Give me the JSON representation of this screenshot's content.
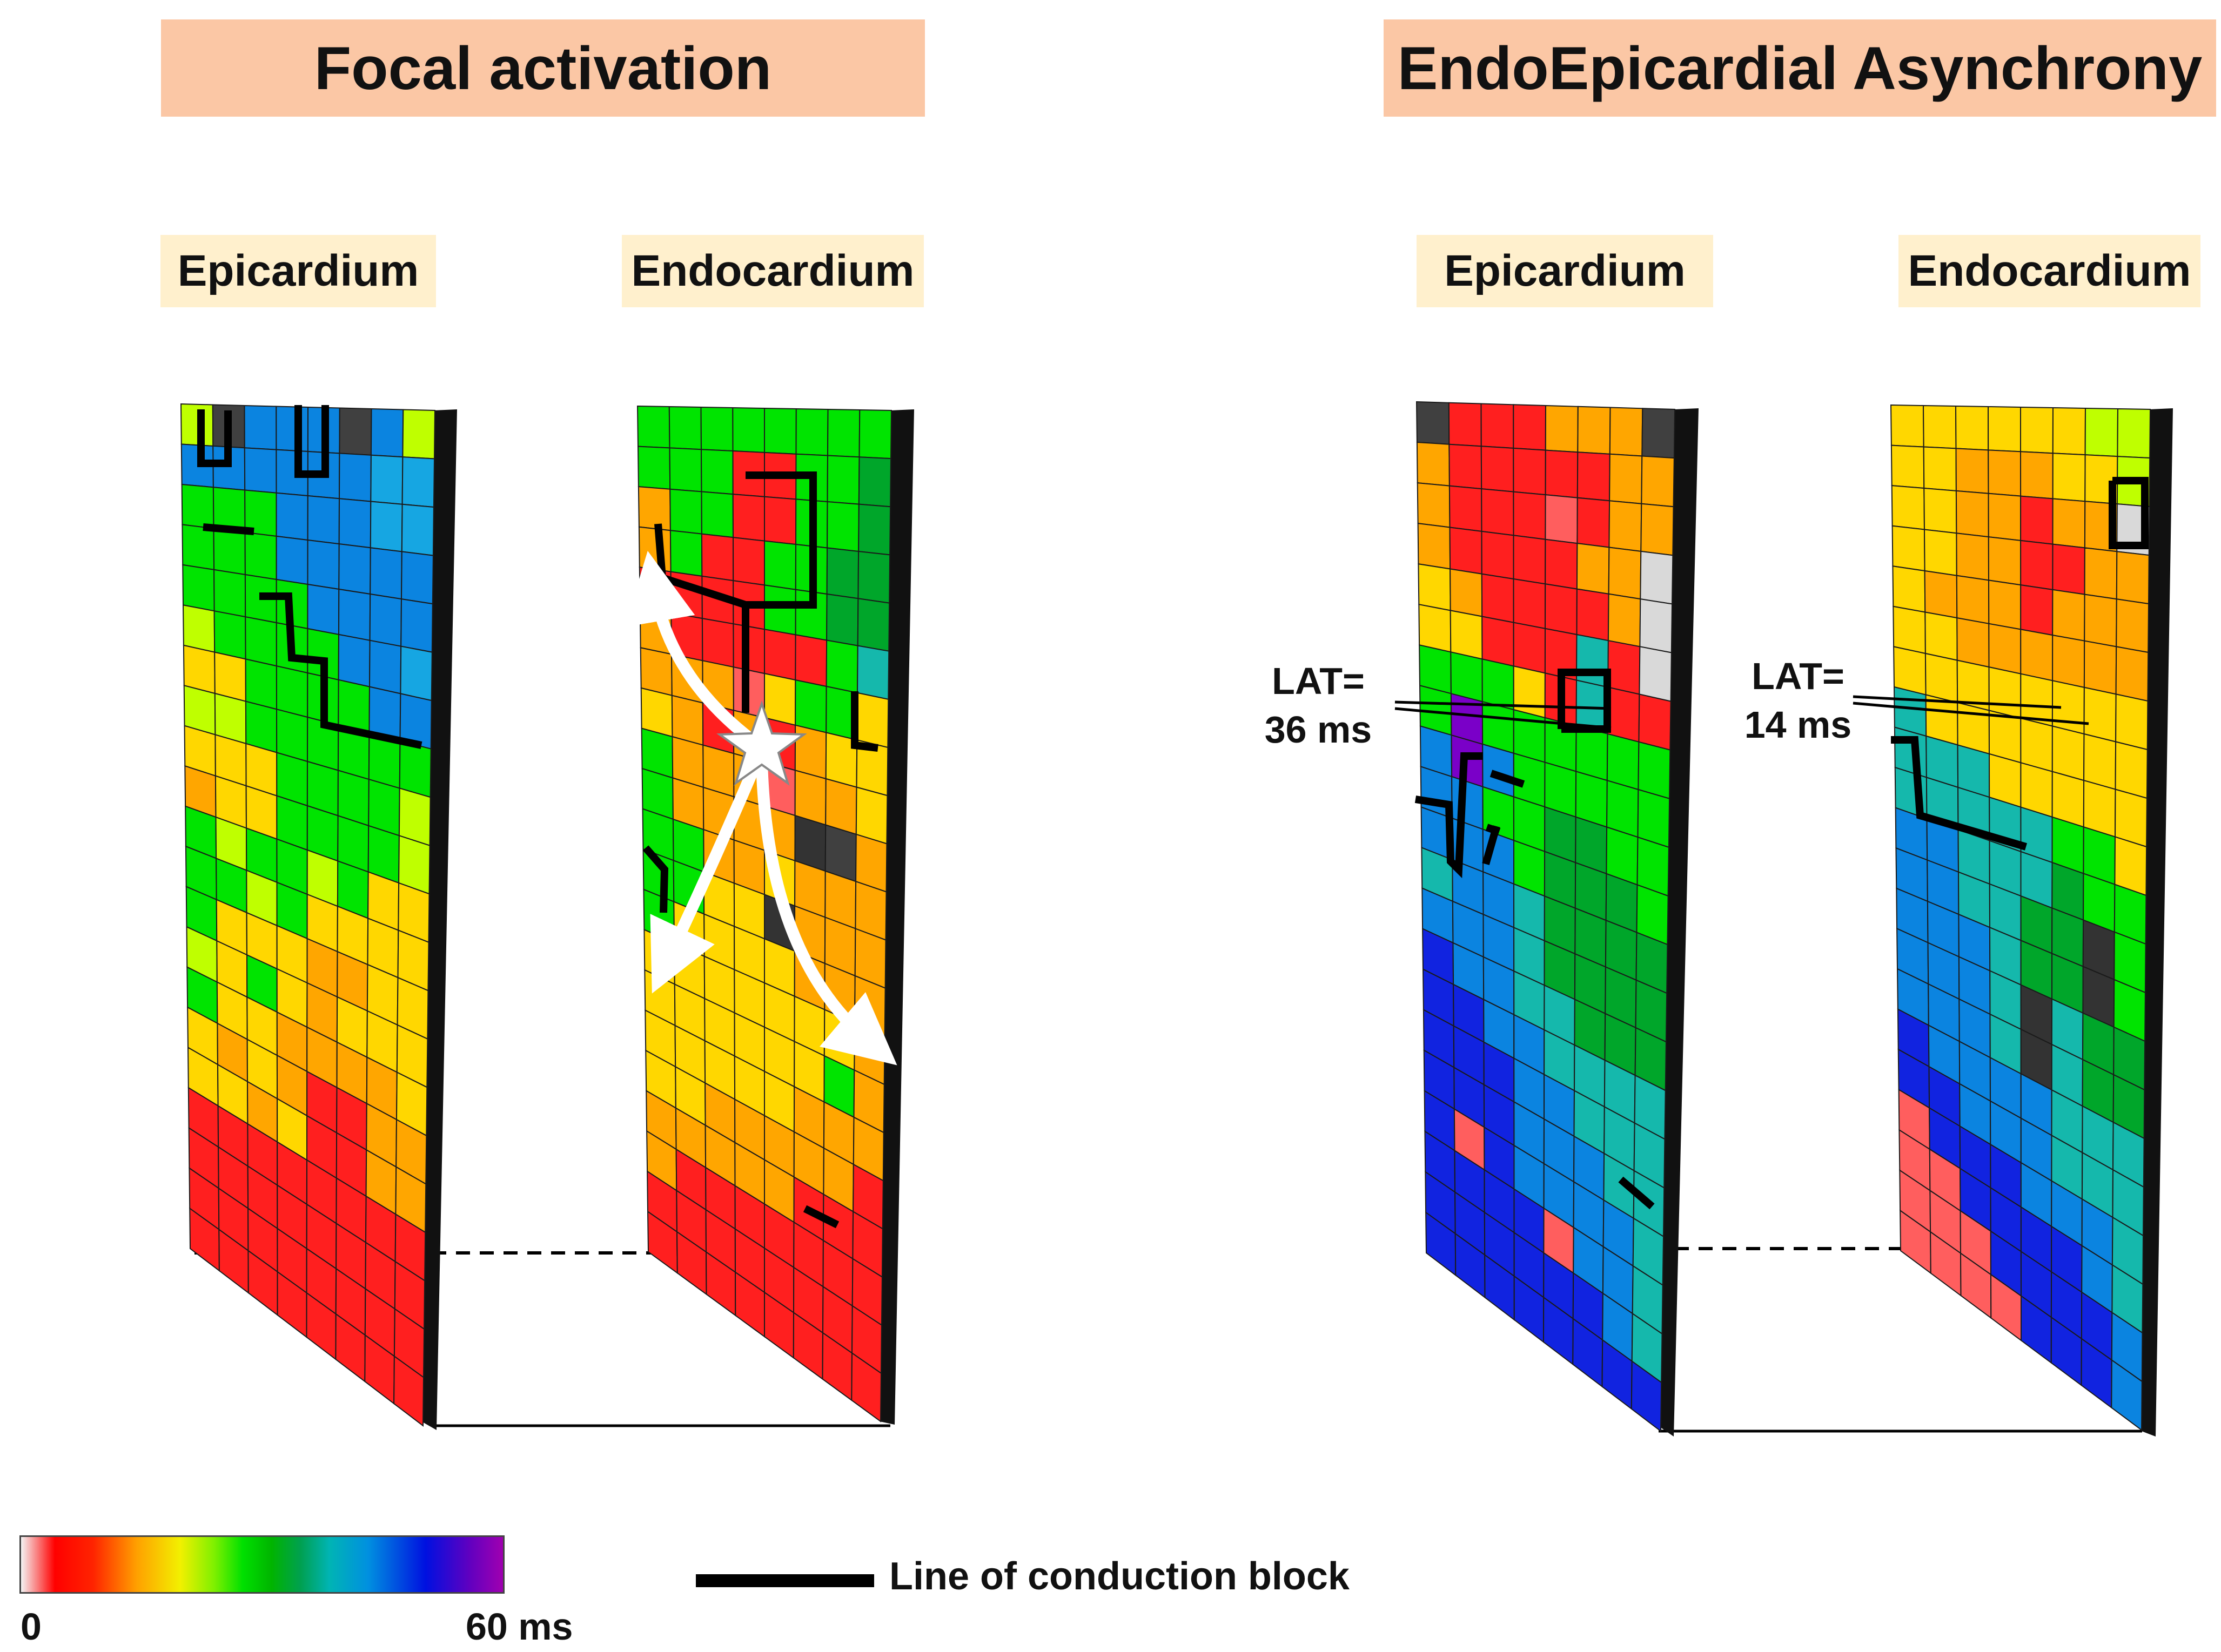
{
  "panels": {
    "focal": {
      "title": "Focal activation",
      "left_label": "Epicardium",
      "right_label": "Endocardium",
      "left_grid": [
        "H0BBB0BH",
        "BBBBBBAA",
        "GGGBBBAA",
        "GGGBBBBB",
        "GGGGBBBB",
        "HGGGGBBA",
        "YYGGGGBB",
        "HHGGGGGG",
        "YYYGGGGH",
        "OYYGGGGH",
        "GHGGHGYY",
        "GGHGYYYY",
        "GYYYOOYY",
        "HYGYOYYY",
        "GYYOOOOY",
        "YOYORROO",
        "YYOYRROO",
        "RRRRRRRR",
        "RRRRRRRR",
        "RRRRRRRR",
        "RRRRRRRR"
      ],
      "right_grid": [
        "GGGGGGGG",
        "GGGRRGGD",
        "OGGRRGGD",
        "OGRRGGDD",
        "RRRRGGDD",
        "ORRRRRGT",
        "OOOPYGGY",
        "YOROROYY",
        "GOOOPOOY",
        "GOOOOK0O",
        "GGOOYOOO",
        "GGYYKOOO",
        "GYYYYOOO",
        "YYYYYYYO",
        "YYYYYYGO",
        "YYYYYOOO",
        "YYOOOOOR",
        "OOOOORRR",
        "ORRRRRRR",
        "RRRRRRRR",
        "RRRRRRRR"
      ]
    },
    "asynchrony": {
      "title": "EndoEpicardial Asynchrony",
      "left_label": "Epicardium",
      "right_label": "Endocardium",
      "lat_left_line1": "LAT=",
      "lat_left_line2": "36 ms",
      "lat_right_line1": "LAT=",
      "lat_right_line2": "14 ms",
      "left_grid": [
        "0RRROOO0",
        "ORRRRROO",
        "ORRRPROO",
        "ORRRROOW",
        "YORRRROW",
        "YYRRRTRW",
        "GGGYRTRR",
        "GVGGGGGG",
        "BVBGGGGG",
        "BBGGDDGG",
        "BBBGDDDG",
        "TBBTDDDD",
        "BBBTDDDD",
        "UBBTTDDD",
        "UUBBTTTT",
        "UUUBBTTT",
        "UUUBBBTT",
        "UPUBBBBT",
        "UUUUPBBT",
        "UUUUUUBT",
        "UUUUUUUU"
      ],
      "right_grid": [
        "YYYYYYHH",
        "YYOOOYYH",
        "YYOOROOW",
        "YYOORROO",
        "YOOOROOO",
        "YYOOOOOO",
        "YYYYYYYY",
        "TYYYYYYY",
        "TTTYYYYY",
        "TTTTTGGY",
        "BBTTTDGG",
        "BBTTDDKG",
        "BBBTDDKG",
        "BBBTKTDD",
        "BBBTKTDD",
        "UBBBBTTT",
        "UUBBBTTT",
        "PUUUBBBT",
        "PPUUUUBT",
        "PPPUUUUB",
        "PPPPUUUB"
      ]
    }
  },
  "colormap": {
    "R": "#ff1f1f",
    "P": "#ff5e5e",
    "O": "#ffa600",
    "Y": "#ffd700",
    "H": "#bfff00",
    "G": "#00e400",
    "D": "#00a62a",
    "T": "#15b8ac",
    "A": "#16a6e2",
    "B": "#0b84e0",
    "U": "#1123e0",
    "V": "#7a00c8",
    "W": "#d9d9d9",
    "K": "#333333",
    "0": "#404040"
  },
  "colorbar": {
    "min_label": "0",
    "max_label": "60 ms"
  },
  "legend": {
    "conduction_block": "Line of conduction block"
  }
}
